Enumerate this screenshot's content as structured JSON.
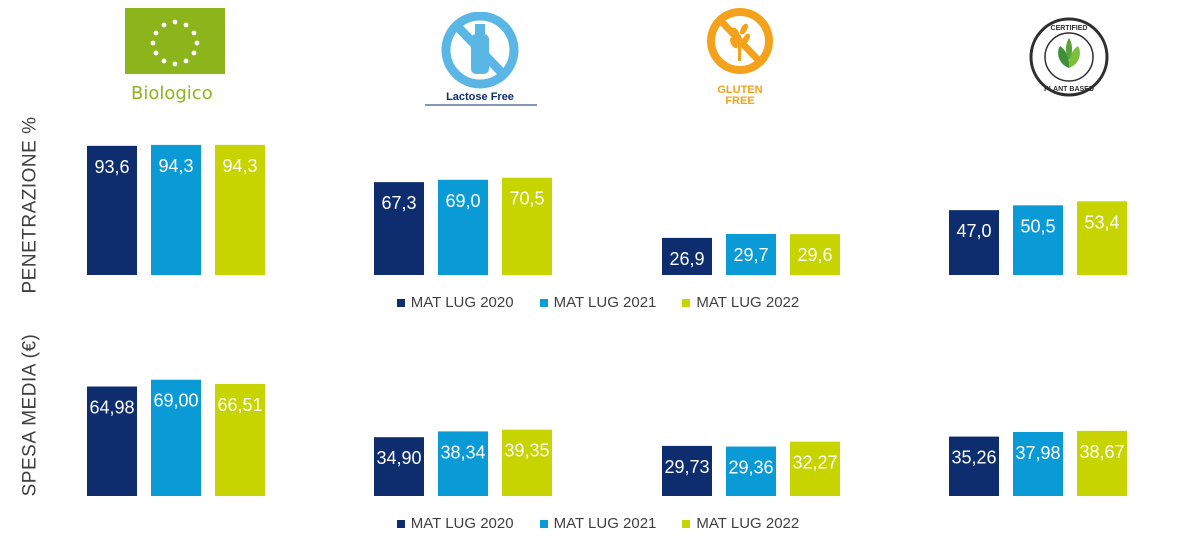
{
  "logos": {
    "biologico": "Biologico",
    "lactose_free": "Lactose Free",
    "gluten_free": [
      "GLUTEN",
      "FREE"
    ],
    "plant_based": [
      "CERTIFIED",
      "PLANT BASED"
    ]
  },
  "colors": {
    "series_2020": "#0d2d6e",
    "series_2021": "#0a9bd6",
    "series_2022": "#c8d400",
    "bio_green": "#8cb51c",
    "lactose_blue": "#5ab6e4",
    "gluten_orange": "#f4a21b",
    "plant_green": "#3f8f3a"
  },
  "legend": [
    "MAT LUG 2020",
    "MAT LUG 2021",
    "MAT LUG 2022"
  ],
  "chart_data": [
    {
      "type": "bar",
      "ylabel": "PENETRAZIONE %",
      "categories": [
        "Biologico",
        "Lactose Free",
        "Gluten Free",
        "Plant Based"
      ],
      "series": [
        {
          "name": "MAT LUG 2020",
          "values": [
            93.6,
            67.3,
            26.9,
            47.0
          ],
          "labels": [
            "93,6",
            "67,3",
            "26,9",
            "47,0"
          ]
        },
        {
          "name": "MAT LUG 2021",
          "values": [
            94.3,
            69.0,
            29.7,
            50.5
          ],
          "labels": [
            "94,3",
            "69,0",
            "29,7",
            "50,5"
          ]
        },
        {
          "name": "MAT LUG 2022",
          "values": [
            94.3,
            70.5,
            29.6,
            53.4
          ],
          "labels": [
            "94,3",
            "70,5",
            "29,6",
            "53,4"
          ]
        }
      ],
      "ylim": [
        0,
        100
      ],
      "grid": false,
      "legend_position": "bottom"
    },
    {
      "type": "bar",
      "ylabel": "SPESA MEDIA (€)",
      "categories": [
        "Biologico",
        "Lactose Free",
        "Gluten Free",
        "Plant Based"
      ],
      "series": [
        {
          "name": "MAT LUG 2020",
          "values": [
            64.98,
            34.9,
            29.73,
            35.26
          ],
          "labels": [
            "64,98",
            "34,90",
            "29,73",
            "35,26"
          ]
        },
        {
          "name": "MAT LUG 2021",
          "values": [
            69.0,
            38.34,
            29.36,
            37.98
          ],
          "labels": [
            "69,00",
            "38,34",
            "29,36",
            "37,98"
          ]
        },
        {
          "name": "MAT LUG 2022",
          "values": [
            66.51,
            39.35,
            32.27,
            38.67
          ],
          "labels": [
            "66,51",
            "39,35",
            "32,27",
            "38,67"
          ]
        }
      ],
      "ylim": [
        0,
        75
      ],
      "grid": false,
      "legend_position": "bottom"
    }
  ]
}
